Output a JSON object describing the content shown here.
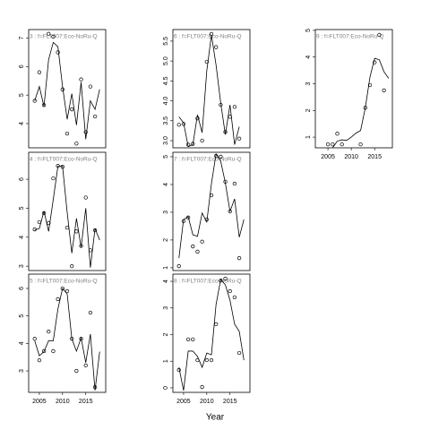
{
  "xlabel": "Year",
  "chart_data": [
    {
      "type": "line",
      "title": "3 : f=FLT007:Eco-NoRu-Q",
      "x": [
        2004,
        2005,
        2006,
        2007,
        2008,
        2009,
        2010,
        2011,
        2012,
        2013,
        2014,
        2015,
        2016,
        2017,
        2018
      ],
      "series": [
        {
          "mode": "points",
          "color": "#000000",
          "values": [
            4.8,
            5.8,
            4.65,
            7.15,
            7.05,
            6.5,
            5.2,
            3.65,
            4.5,
            3.3,
            5.55,
            3.7,
            5.3,
            4.25,
            null
          ]
        },
        {
          "mode": "line",
          "color": "#000000",
          "values": [
            4.8,
            5.3,
            4.6,
            6.25,
            6.85,
            6.7,
            5.3,
            4.15,
            5.05,
            3.95,
            5.45,
            3.45,
            4.8,
            4.5,
            5.2
          ]
        }
      ],
      "xlim": [
        2002.7,
        2019.3
      ],
      "ylim": [
        3.15,
        7.3
      ],
      "yticks": [
        4,
        5,
        6,
        7
      ]
    },
    {
      "type": "line",
      "title": "4 : f=FLT007:Eco-NoRu-Q",
      "x": [
        2004,
        2005,
        2006,
        2007,
        2008,
        2009,
        2010,
        2011,
        2012,
        2013,
        2014,
        2015,
        2016,
        2017,
        2018
      ],
      "series": [
        {
          "mode": "points",
          "color": "#000000",
          "values": [
            4.27,
            4.52,
            4.83,
            4.49,
            6.03,
            6.46,
            6.43,
            4.33,
            3.0,
            4.2,
            3.7,
            5.37,
            3.55,
            4.24,
            null
          ]
        },
        {
          "mode": "line",
          "color": "#000000",
          "values": [
            4.25,
            4.3,
            4.9,
            4.2,
            5.3,
            6.45,
            6.45,
            4.85,
            3.45,
            4.65,
            3.65,
            5.0,
            2.95,
            4.3,
            3.9
          ]
        }
      ],
      "xlim": [
        2002.7,
        2019.3
      ],
      "ylim": [
        2.85,
        6.93
      ],
      "yticks": [
        3,
        4,
        5,
        6
      ]
    },
    {
      "type": "line",
      "title": "5 : f=FLT007:Eco-NoRu-Q",
      "x": [
        2004,
        2005,
        2006,
        2007,
        2008,
        2009,
        2010,
        2011,
        2012,
        2013,
        2014,
        2015,
        2016,
        2017,
        2018
      ],
      "series": [
        {
          "mode": "points",
          "color": "#000000",
          "values": [
            4.17,
            3.39,
            3.72,
            4.43,
            3.72,
            5.61,
            6.0,
            5.9,
            4.17,
            3.0,
            4.17,
            3.2,
            5.12,
            2.41,
            null
          ]
        },
        {
          "mode": "line",
          "color": "#000000",
          "values": [
            4.1,
            3.55,
            3.7,
            4.1,
            4.1,
            5.25,
            6.0,
            5.8,
            4.17,
            3.72,
            4.2,
            3.3,
            4.34,
            2.29,
            3.7
          ]
        }
      ],
      "xlim": [
        2002.7,
        2019.3
      ],
      "ylim": [
        2.22,
        6.52
      ],
      "yticks": [
        3,
        4,
        5,
        6
      ],
      "xticks": [
        2005,
        2010,
        2015
      ]
    },
    {
      "type": "line",
      "title": "6 : f=FLT007:Eco-NoRu-Q",
      "x": [
        2004,
        2005,
        2006,
        2007,
        2008,
        2009,
        2010,
        2011,
        2012,
        2013,
        2014,
        2015,
        2016,
        2017
      ],
      "series": [
        {
          "mode": "points",
          "color": "#000000",
          "values": [
            3.4,
            3.42,
            2.9,
            2.92,
            3.56,
            3.0,
            4.98,
            5.68,
            5.35,
            3.9,
            3.22,
            3.6,
            3.85,
            3.05
          ]
        },
        {
          "mode": "line",
          "color": "#000000",
          "values": [
            3.6,
            3.45,
            2.85,
            2.9,
            3.65,
            3.2,
            4.75,
            5.65,
            4.9,
            3.95,
            3.15,
            3.9,
            2.9,
            3.35
          ]
        }
      ],
      "xlim": [
        2002.7,
        2019.3
      ],
      "ylim": [
        2.82,
        5.79
      ],
      "yticks": [
        {
          "value": 3,
          "label": "3.0"
        },
        3.5,
        {
          "value": 4,
          "label": "4.0"
        },
        4.5,
        {
          "value": 5,
          "label": "5.0"
        },
        5.5
      ]
    },
    {
      "type": "line",
      "title": "7 : f=FLT007:Eco-NoRu-Q",
      "x": [
        2004,
        2005,
        2006,
        2007,
        2008,
        2009,
        2010,
        2011,
        2012,
        2013,
        2014,
        2015,
        2016,
        2017,
        2018
      ],
      "series": [
        {
          "mode": "points",
          "color": "#000000",
          "values": [
            1.06,
            2.68,
            2.81,
            1.77,
            1.58,
            1.94,
            2.74,
            3.61,
            5.03,
            5.0,
            4.1,
            3.03,
            4.03,
            1.35,
            null
          ]
        },
        {
          "mode": "line",
          "color": "#000000",
          "values": [
            1.35,
            2.74,
            2.84,
            2.19,
            2.13,
            2.97,
            2.65,
            4.03,
            5.1,
            4.84,
            4.06,
            3.03,
            3.48,
            2.1,
            2.74
          ]
        }
      ],
      "xlim": [
        2002.7,
        2019.3
      ],
      "ylim": [
        0.9,
        5.16
      ],
      "yticks": [
        1,
        2,
        3,
        4,
        5
      ]
    },
    {
      "type": "line",
      "title": "8 : f=FLT007:Eco-NoRu-Q",
      "x": [
        2004,
        2005,
        2006,
        2007,
        2008,
        2009,
        2010,
        2011,
        2012,
        2013,
        2014,
        2015,
        2016,
        2017,
        2018
      ],
      "series": [
        {
          "mode": "points",
          "color": "#000000",
          "values": [
            0.67,
            null,
            1.82,
            1.82,
            1.04,
            0.03,
            1.04,
            1.04,
            2.39,
            4.03,
            4.1,
            3.63,
            3.4,
            1.31,
            null
          ]
        },
        {
          "mode": "line",
          "color": "#000000",
          "values": [
            0.77,
            -0.1,
            1.38,
            1.38,
            1.18,
            0.77,
            1.31,
            1.24,
            3.13,
            4.07,
            3.87,
            3.29,
            2.39,
            2.12,
            1.04
          ]
        }
      ],
      "xlim": [
        2002.7,
        2019.3
      ],
      "ylim": [
        -0.17,
        4.27
      ],
      "yticks": [
        0,
        1,
        2,
        3,
        4
      ],
      "xticks": [
        2005,
        2010,
        2015
      ]
    },
    {
      "type": "line",
      "title": "9 : f=FLT007:Eco-NoRu-Q",
      "x": [
        2005,
        2006,
        2007,
        2008,
        2009,
        2010,
        2011,
        2012,
        2013,
        2014,
        2015,
        2016,
        2017,
        2018
      ],
      "series": [
        {
          "mode": "points",
          "color": "#000000",
          "values": [
            0.73,
            0.73,
            1.13,
            0.73,
            null,
            null,
            null,
            0.73,
            2.1,
            2.95,
            3.8,
            4.83,
            2.75,
            null
          ]
        },
        {
          "mode": "line",
          "color": "#000000",
          "values": [
            null,
            0.6,
            0.85,
            0.9,
            0.88,
            1.0,
            1.15,
            1.25,
            2.1,
            3.25,
            3.95,
            3.9,
            3.45,
            3.2
          ]
        }
      ],
      "xlim": [
        2002.3,
        2018.8
      ],
      "ylim": [
        0.6,
        5.03
      ],
      "yticks": [
        1,
        2,
        3,
        4,
        5
      ],
      "xticks": [
        2005,
        2010,
        2015
      ]
    }
  ]
}
